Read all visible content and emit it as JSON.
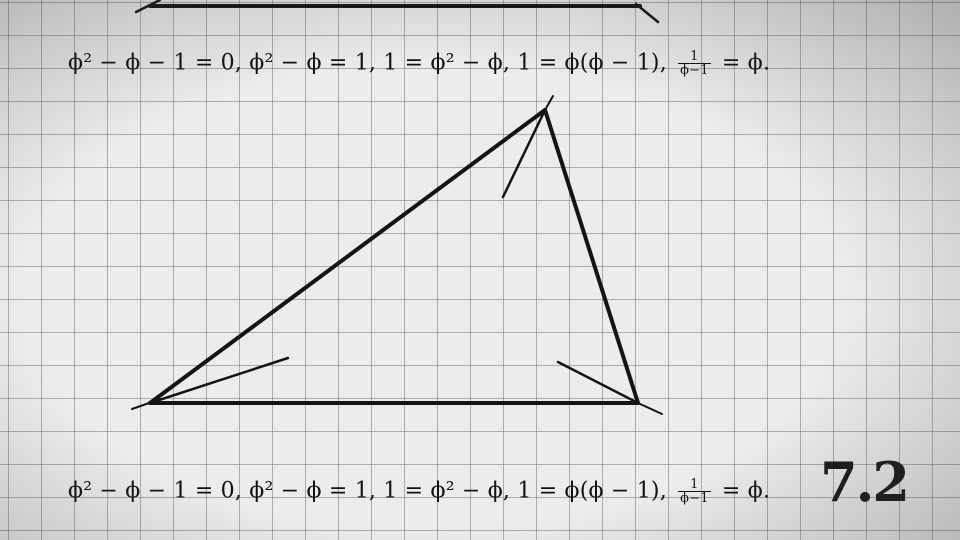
{
  "formula_top": {
    "lhs1": "ϕ² − ϕ − 1 = 0, ϕ² − ϕ = 1, 1 = ϕ² − ϕ, 1 = ϕ(ϕ − 1), ",
    "frac_num": "1",
    "frac_den": "ϕ−1",
    "rhs": " = ϕ."
  },
  "formula_bottom": {
    "lhs1": "ϕ² − ϕ − 1 = 0, ϕ² − ϕ = 1, 1 = ϕ² − ϕ, 1 = ϕ(ϕ − 1), ",
    "frac_num": "1",
    "frac_den": "ϕ−1",
    "rhs": " = ϕ."
  },
  "section_number": "7.2",
  "colors": {
    "ink": "#111111",
    "paper": "#ececec",
    "grid": "#8a8a8a"
  }
}
